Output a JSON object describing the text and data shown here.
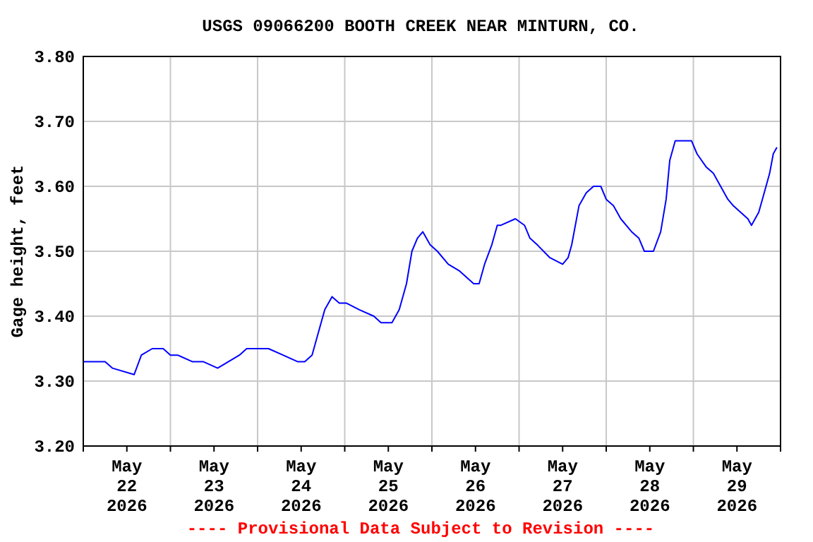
{
  "chart_data": {
    "type": "line",
    "title": "USGS 09066200 BOOTH CREEK NEAR MINTURN, CO.",
    "ylabel": "Gage height, feet",
    "x": [
      "2026-05-22T00:00",
      "2026-05-22T06:00",
      "2026-05-22T08:00",
      "2026-05-22T14:00",
      "2026-05-22T16:00",
      "2026-05-22T19:00",
      "2026-05-22T22:00",
      "2026-05-23T00:00",
      "2026-05-23T02:00",
      "2026-05-23T06:00",
      "2026-05-23T09:00",
      "2026-05-23T13:00",
      "2026-05-23T16:00",
      "2026-05-23T19:00",
      "2026-05-23T21:00",
      "2026-05-23T23:00",
      "2026-05-24T03:00",
      "2026-05-24T07:00",
      "2026-05-24T11:00",
      "2026-05-24T13:00",
      "2026-05-24T15:00",
      "2026-05-24T16:30",
      "2026-05-24T18:30",
      "2026-05-24T20:30",
      "2026-05-24T22:30",
      "2026-05-25T00:30",
      "2026-05-25T04:00",
      "2026-05-25T08:00",
      "2026-05-25T10:00",
      "2026-05-25T13:00",
      "2026-05-25T15:00",
      "2026-05-25T17:00",
      "2026-05-25T18:30",
      "2026-05-25T20:00",
      "2026-05-25T21:30",
      "2026-05-25T23:30",
      "2026-05-26T01:30",
      "2026-05-26T04:30",
      "2026-05-26T07:30",
      "2026-05-26T09:30",
      "2026-05-26T11:30",
      "2026-05-26T13:00",
      "2026-05-26T14:30",
      "2026-05-26T16:30",
      "2026-05-26T18:00",
      "2026-05-26T19:00",
      "2026-05-26T23:00",
      "2026-05-27T01:30",
      "2026-05-27T03:00",
      "2026-05-27T05:00",
      "2026-05-27T08:30",
      "2026-05-27T12:00",
      "2026-05-27T13:30",
      "2026-05-27T14:30",
      "2026-05-27T16:30",
      "2026-05-27T18:30",
      "2026-05-27T20:30",
      "2026-05-27T22:30",
      "2026-05-28T00:00",
      "2026-05-28T02:00",
      "2026-05-28T04:00",
      "2026-05-28T07:00",
      "2026-05-28T09:00",
      "2026-05-28T10:30",
      "2026-05-28T13:00",
      "2026-05-28T15:00",
      "2026-05-28T16:30",
      "2026-05-28T17:30",
      "2026-05-28T19:00",
      "2026-05-28T20:30",
      "2026-05-28T23:30",
      "2026-05-29T01:00",
      "2026-05-29T03:30",
      "2026-05-29T05:30",
      "2026-05-29T07:30",
      "2026-05-29T09:30",
      "2026-05-29T11:00",
      "2026-05-29T13:00",
      "2026-05-29T15:00",
      "2026-05-29T16:00",
      "2026-05-29T18:00",
      "2026-05-29T19:00",
      "2026-05-29T21:00",
      "2026-05-29T22:00",
      "2026-05-29T23:00"
    ],
    "series": [
      {
        "color": "#0000ff",
        "values": [
          3.33,
          3.33,
          3.32,
          3.31,
          3.34,
          3.35,
          3.35,
          3.34,
          3.34,
          3.33,
          3.33,
          3.32,
          3.33,
          3.34,
          3.35,
          3.35,
          3.35,
          3.34,
          3.33,
          3.33,
          3.34,
          3.37,
          3.41,
          3.43,
          3.42,
          3.42,
          3.41,
          3.4,
          3.39,
          3.39,
          3.41,
          3.45,
          3.5,
          3.52,
          3.53,
          3.51,
          3.5,
          3.48,
          3.47,
          3.46,
          3.45,
          3.45,
          3.48,
          3.51,
          3.54,
          3.54,
          3.55,
          3.54,
          3.52,
          3.51,
          3.49,
          3.48,
          3.49,
          3.51,
          3.57,
          3.59,
          3.6,
          3.6,
          3.58,
          3.57,
          3.55,
          3.53,
          3.52,
          3.5,
          3.5,
          3.53,
          3.58,
          3.64,
          3.67,
          3.67,
          3.67,
          3.65,
          3.63,
          3.62,
          3.6,
          3.58,
          3.57,
          3.56,
          3.55,
          3.54,
          3.56,
          3.58,
          3.62,
          3.65,
          3.66
        ]
      }
    ],
    "xlim": [
      "2026-05-22T00:00",
      "2026-05-30T00:00"
    ],
    "xticks": [
      {
        "value": "2026-05-22T00:00",
        "label": null
      },
      {
        "value": "2026-05-22T12:00",
        "label": "May\n22\n2026"
      },
      {
        "value": "2026-05-23T00:00",
        "label": null
      },
      {
        "value": "2026-05-23T12:00",
        "label": "May\n23\n2026"
      },
      {
        "value": "2026-05-24T00:00",
        "label": null
      },
      {
        "value": "2026-05-24T12:00",
        "label": "May\n24\n2026"
      },
      {
        "value": "2026-05-25T00:00",
        "label": null
      },
      {
        "value": "2026-05-25T12:00",
        "label": "May\n25\n2026"
      },
      {
        "value": "2026-05-26T00:00",
        "label": null
      },
      {
        "value": "2026-05-26T12:00",
        "label": "May\n26\n2026"
      },
      {
        "value": "2026-05-27T00:00",
        "label": null
      },
      {
        "value": "2026-05-27T12:00",
        "label": "May\n27\n2026"
      },
      {
        "value": "2026-05-28T00:00",
        "label": null
      },
      {
        "value": "2026-05-28T12:00",
        "label": "May\n28\n2026"
      },
      {
        "value": "2026-05-29T00:00",
        "label": null
      },
      {
        "value": "2026-05-29T12:00",
        "label": "May\n29\n2026"
      },
      {
        "value": "2026-05-30T00:00",
        "label": null
      }
    ],
    "ylim": [
      3.2,
      3.8
    ],
    "yticks": [
      {
        "value": 3.2,
        "label": "3.20"
      },
      {
        "value": 3.3,
        "label": "3.30"
      },
      {
        "value": 3.4,
        "label": "3.40"
      },
      {
        "value": 3.5,
        "label": "3.50"
      },
      {
        "value": 3.6,
        "label": "3.60"
      },
      {
        "value": 3.7,
        "label": "3.70"
      },
      {
        "value": 3.8,
        "label": "3.80"
      }
    ],
    "grid": true,
    "annotations": [
      "---- Provisional Data Subject to Revision ----"
    ]
  }
}
